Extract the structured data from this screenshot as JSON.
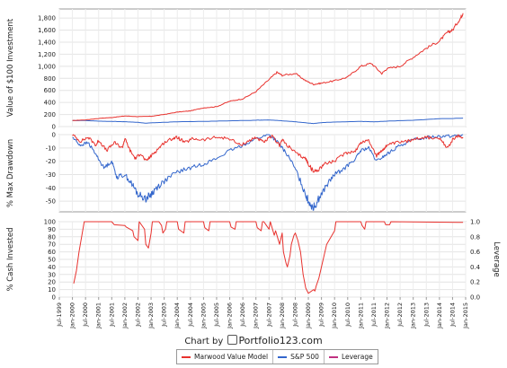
{
  "chart_data": [
    {
      "type": "line",
      "ylabel": "Value of $100 Investment",
      "ylim": [
        0,
        1950
      ],
      "yticks": [
        0,
        200,
        400,
        600,
        800,
        1000,
        1200,
        1400,
        1600,
        1800
      ],
      "ytick_labels": [
        "0",
        "200",
        "400",
        "600",
        "800",
        "1,000",
        "1,200",
        "1,400",
        "1,600",
        "1,800"
      ],
      "grid": true,
      "series": [
        {
          "name": "Marwood Value Model",
          "color": "#e8322e",
          "x": [
            2000.0,
            2000.5,
            2001.0,
            2001.5,
            2002.0,
            2002.5,
            2003.0,
            2003.5,
            2004.0,
            2004.5,
            2005.0,
            2005.5,
            2006.0,
            2006.5,
            2007.0,
            2007.5,
            2007.8,
            2008.0,
            2008.5,
            2008.9,
            2009.2,
            2009.5,
            2010.0,
            2010.5,
            2011.0,
            2011.4,
            2011.8,
            2012.0,
            2012.5,
            2013.0,
            2013.5,
            2014.0,
            2014.3,
            2014.5,
            2014.8,
            2014.9
          ],
          "y": [
            100,
            110,
            135,
            150,
            175,
            165,
            170,
            200,
            240,
            260,
            310,
            330,
            420,
            460,
            580,
            780,
            900,
            850,
            880,
            760,
            700,
            720,
            760,
            820,
            1000,
            1050,
            880,
            960,
            1000,
            1150,
            1300,
            1420,
            1560,
            1600,
            1800,
            1880
          ]
        },
        {
          "name": "S&P 500",
          "color": "#3366cc",
          "x": [
            2000.0,
            2000.5,
            2001.0,
            2001.5,
            2002.0,
            2002.5,
            2002.8,
            2003.0,
            2003.5,
            2004.0,
            2005.0,
            2006.0,
            2007.0,
            2007.5,
            2008.0,
            2008.5,
            2009.0,
            2009.2,
            2009.5,
            2010.0,
            2011.0,
            2011.5,
            2012.0,
            2013.0,
            2014.0,
            2014.9
          ],
          "y": [
            100,
            100,
            90,
            85,
            80,
            70,
            55,
            62,
            70,
            80,
            85,
            95,
            105,
            110,
            95,
            80,
            58,
            50,
            65,
            75,
            85,
            78,
            90,
            105,
            130,
            140
          ]
        }
      ]
    },
    {
      "type": "line",
      "ylabel": "% Max Drawdown",
      "ylim": [
        -58,
        0
      ],
      "yticks": [
        0,
        -10,
        -20,
        -30,
        -40,
        -50
      ],
      "ytick_labels": [
        "0",
        "-10",
        "-20",
        "-30",
        "-40",
        "-50"
      ],
      "grid": true,
      "series": [
        {
          "name": "Marwood Value Model",
          "color": "#e8322e",
          "x": [
            2000.0,
            2000.3,
            2000.6,
            2000.9,
            2001.0,
            2001.3,
            2001.6,
            2001.9,
            2002.0,
            2002.2,
            2002.4,
            2002.6,
            2002.8,
            2003.0,
            2003.2,
            2003.5,
            2003.8,
            2004.0,
            2004.3,
            2004.6,
            2005.0,
            2005.5,
            2006.0,
            2006.4,
            2006.8,
            2007.0,
            2007.3,
            2007.6,
            2007.9,
            2008.0,
            2008.3,
            2008.6,
            2008.9,
            2009.0,
            2009.2,
            2009.4,
            2009.6,
            2010.0,
            2010.4,
            2010.8,
            2011.0,
            2011.3,
            2011.6,
            2011.8,
            2012.0,
            2012.4,
            2012.8,
            2013.0,
            2013.5,
            2014.0,
            2014.3,
            2014.5,
            2014.7,
            2014.9
          ],
          "y": [
            0,
            -5,
            -2,
            -8,
            -4,
            -12,
            -6,
            -10,
            -3,
            -12,
            -18,
            -14,
            -20,
            -16,
            -12,
            -6,
            -3,
            -2,
            -6,
            -3,
            -4,
            -2,
            -3,
            -8,
            -4,
            -2,
            -6,
            -1,
            -8,
            -4,
            -10,
            -15,
            -18,
            -22,
            -28,
            -26,
            -22,
            -20,
            -14,
            -12,
            -6,
            -4,
            -16,
            -12,
            -8,
            -6,
            -5,
            -3,
            -2,
            -3,
            -10,
            -4,
            -1,
            -2
          ]
        },
        {
          "name": "S&P 500",
          "color": "#3366cc",
          "x": [
            2000.0,
            2000.3,
            2000.6,
            2000.9,
            2001.2,
            2001.5,
            2001.7,
            2002.0,
            2002.3,
            2002.5,
            2002.8,
            2003.0,
            2003.2,
            2003.5,
            2004.0,
            2004.5,
            2005.0,
            2005.5,
            2006.0,
            2006.5,
            2007.0,
            2007.5,
            2007.8,
            2008.0,
            2008.3,
            2008.6,
            2008.9,
            2009.0,
            2009.2,
            2009.4,
            2009.7,
            2010.0,
            2010.4,
            2010.8,
            2011.0,
            2011.3,
            2011.6,
            2011.9,
            2012.2,
            2012.5,
            2013.0,
            2013.5,
            2014.0,
            2014.5,
            2014.9
          ],
          "y": [
            -2,
            -8,
            -6,
            -15,
            -25,
            -20,
            -32,
            -30,
            -38,
            -45,
            -48,
            -45,
            -40,
            -35,
            -28,
            -25,
            -22,
            -18,
            -12,
            -8,
            -3,
            0,
            -5,
            -10,
            -18,
            -30,
            -45,
            -50,
            -55,
            -48,
            -38,
            -30,
            -25,
            -18,
            -12,
            -10,
            -20,
            -16,
            -12,
            -8,
            -4,
            -2,
            -1,
            -1,
            0
          ]
        }
      ]
    },
    {
      "type": "line",
      "ylabel": "% Cash Invested",
      "ylim": [
        0,
        100
      ],
      "yticks": [
        0,
        10,
        20,
        30,
        40,
        50,
        60,
        70,
        80,
        90,
        100
      ],
      "ytick_labels": [
        "0",
        "10",
        "20",
        "30",
        "40",
        "50",
        "60",
        "70",
        "80",
        "90",
        "100"
      ],
      "y2label": "Leverage",
      "y2ticks": [
        0,
        0.2,
        0.4,
        0.6,
        0.8,
        1.0
      ],
      "y2tick_labels": [
        "0.0",
        "0.2",
        "0.4",
        "0.6",
        "0.8",
        "1.0"
      ],
      "grid": true,
      "series": [
        {
          "name": "Marwood Value Model",
          "color": "#e8322e",
          "x": [
            2000.05,
            2000.15,
            2000.25,
            2000.35,
            2000.45,
            2001.5,
            2001.6,
            2002.0,
            2002.05,
            2002.3,
            2002.35,
            2002.5,
            2002.55,
            2002.75,
            2002.8,
            2002.9,
            2003.0,
            2003.05,
            2003.3,
            2003.4,
            2003.45,
            2003.55,
            2003.6,
            2004.0,
            2004.05,
            2004.25,
            2004.3,
            2005.0,
            2005.05,
            2005.2,
            2005.25,
            2006.0,
            2006.05,
            2006.2,
            2006.25,
            2007.0,
            2007.05,
            2007.2,
            2007.25,
            2007.3,
            2007.4,
            2007.5,
            2007.55,
            2007.7,
            2007.75,
            2007.9,
            2008.0,
            2008.05,
            2008.15,
            2008.2,
            2008.3,
            2008.35,
            2008.45,
            2008.5,
            2008.6,
            2008.7,
            2008.8,
            2008.9,
            2009.0,
            2009.2,
            2009.25,
            2009.3,
            2009.4,
            2009.5,
            2009.6,
            2009.7,
            2010.0,
            2010.05,
            2010.2,
            2011.0,
            2011.05,
            2011.15,
            2011.2,
            2011.9,
            2011.95,
            2012.1,
            2012.15,
            2014.8,
            2014.9
          ],
          "y": [
            18,
            35,
            60,
            80,
            100,
            100,
            96,
            95,
            93,
            88,
            80,
            75,
            100,
            90,
            70,
            65,
            85,
            100,
            100,
            95,
            85,
            90,
            100,
            100,
            90,
            85,
            100,
            100,
            92,
            88,
            100,
            100,
            93,
            90,
            100,
            100,
            92,
            88,
            100,
            100,
            95,
            90,
            100,
            82,
            88,
            70,
            85,
            60,
            45,
            40,
            55,
            70,
            82,
            85,
            75,
            60,
            30,
            12,
            5,
            10,
            8,
            15,
            25,
            40,
            55,
            70,
            88,
            100,
            100,
            100,
            95,
            90,
            100,
            100,
            96,
            96,
            100,
            99,
            99
          ]
        },
        {
          "name": "Leverage",
          "color": "#c03080",
          "x": [
            2000.0,
            2014.9
          ],
          "y": [
            1.0,
            1.0
          ]
        }
      ]
    }
  ],
  "x_axis": {
    "range": [
      1999.5,
      2015.0
    ],
    "tick_labels": [
      "Jul-1999",
      "Jan-2000",
      "Jul-2000",
      "Jan-2001",
      "Jul-2001",
      "Jan-2002",
      "Jul-2002",
      "Jan-2003",
      "Jul-2003",
      "Jan-2004",
      "Jul-2004",
      "Jan-2005",
      "Jul-2005",
      "Jan-2006",
      "Jul-2006",
      "Jan-2007",
      "Jul-2007",
      "Jan-2008",
      "Jul-2008",
      "Jan-2009",
      "Jul-2009",
      "Jan-2010",
      "Jul-2010",
      "Jan-2011",
      "Jul-2011",
      "Jan-2012",
      "Jul-2012",
      "Jan-2013",
      "Jul-2013",
      "Jan-2014",
      "Jul-2014",
      "Jan-2015"
    ]
  },
  "credit": {
    "prefix": "Chart by",
    "brand": "Portfolio123.com"
  },
  "legend": [
    {
      "name": "Marwood Value Model",
      "color": "#e8322e"
    },
    {
      "name": "S&P 500",
      "color": "#3366cc"
    },
    {
      "name": "Leverage",
      "color": "#c03080"
    }
  ]
}
